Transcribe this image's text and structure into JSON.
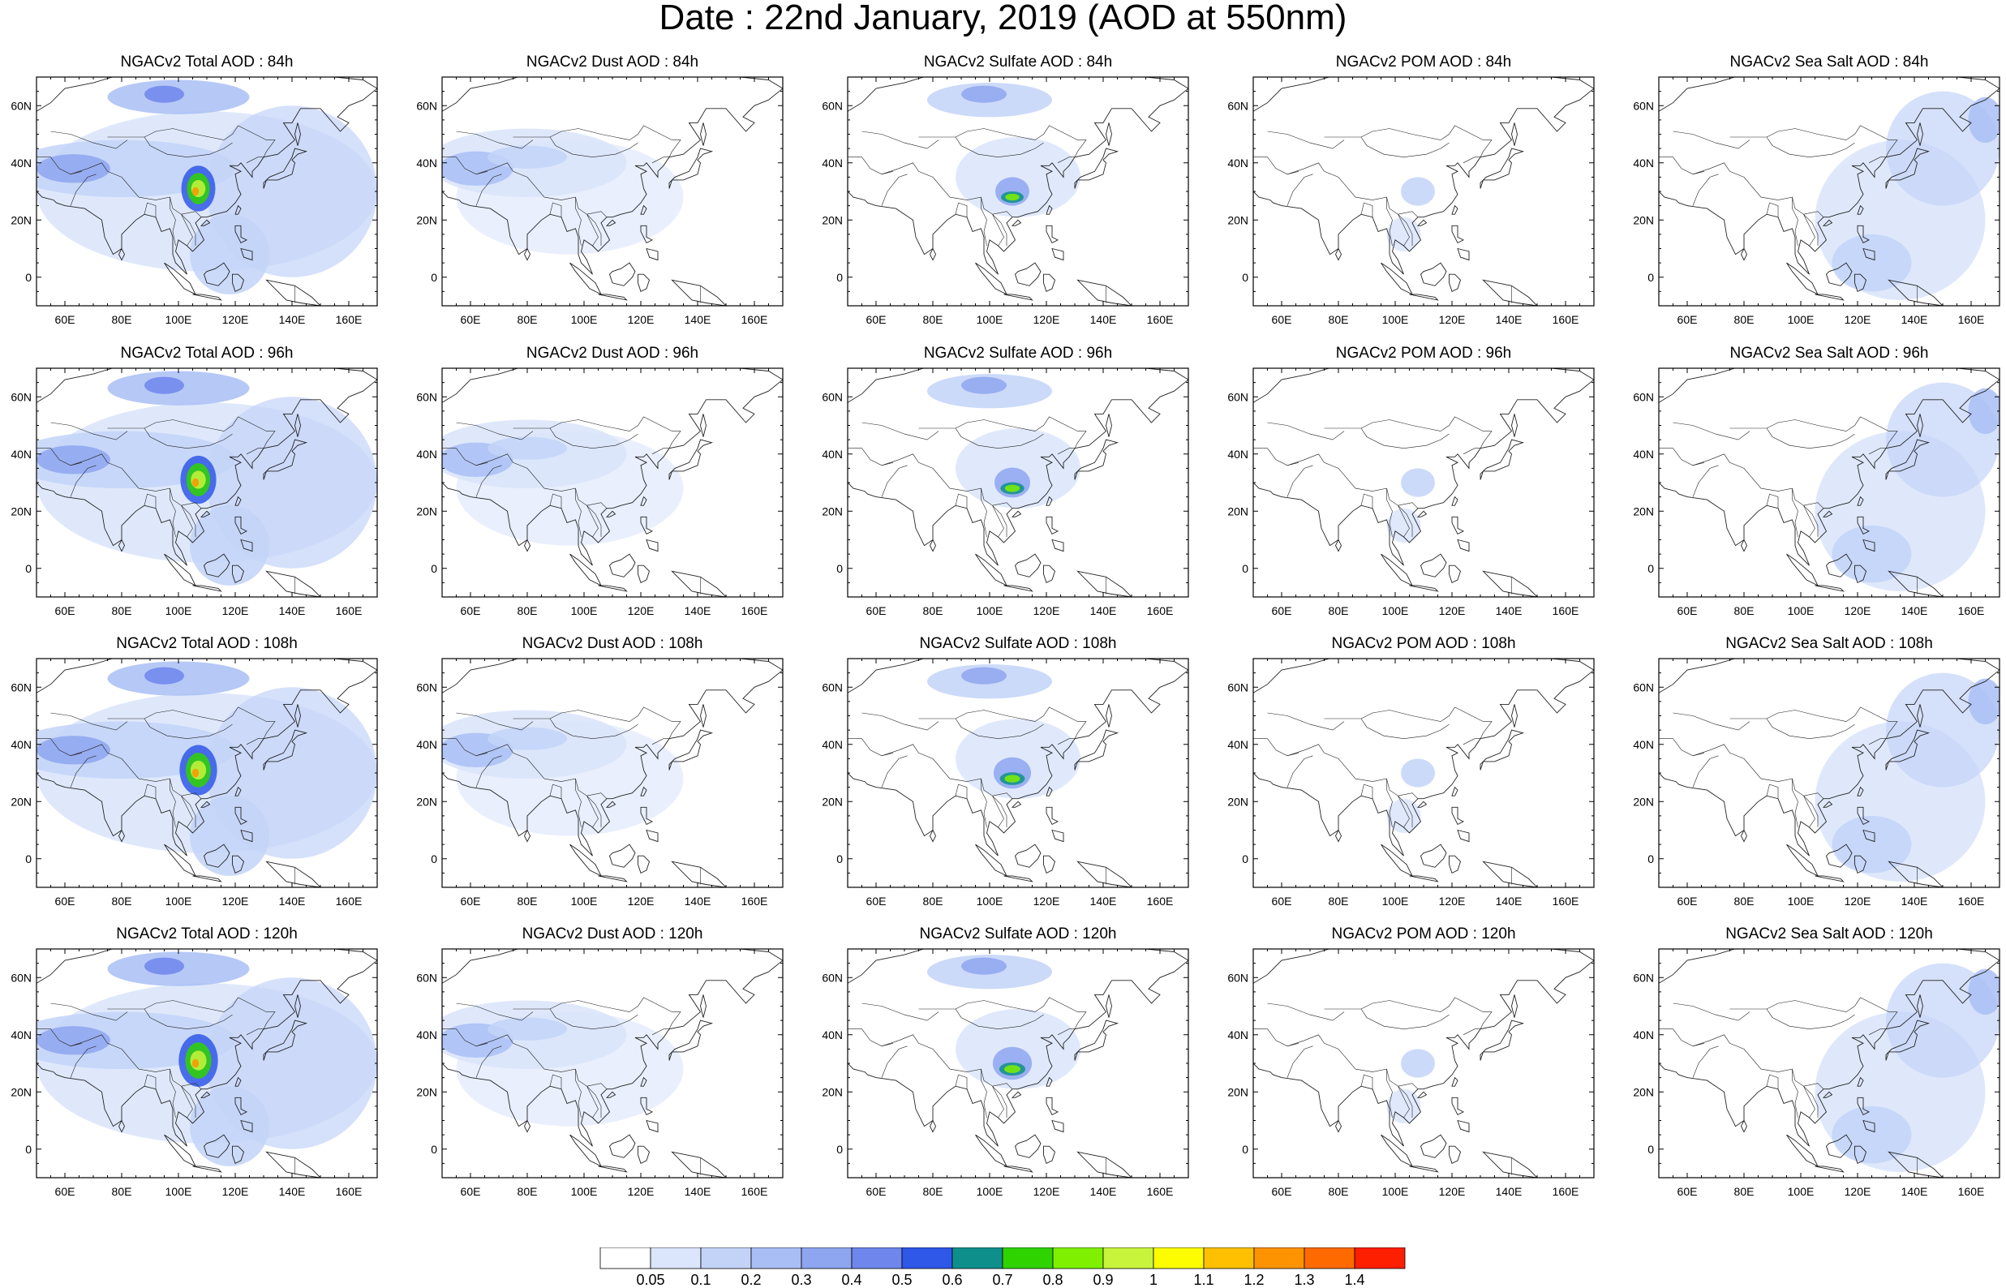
{
  "title": "Date : 22nd January, 2019 (AOD at 550nm)",
  "map": {
    "lon_ticks": [
      "60E",
      "80E",
      "100E",
      "120E",
      "140E",
      "160E"
    ],
    "lat_ticks": [
      "60N",
      "40N",
      "20N",
      "0"
    ],
    "lon_range": [
      50,
      170
    ],
    "lat_range": [
      -10,
      70
    ],
    "coastline": "coastline-icon"
  },
  "columns": [
    "Total",
    "Dust",
    "Sulfate",
    "POM",
    "Sea Salt"
  ],
  "panels": [
    [
      {
        "title": "NGACv2 Total AOD : 84h"
      },
      {
        "title": "NGACv2 Dust AOD : 84h"
      },
      {
        "title": "NGACv2 Sulfate AOD : 84h"
      },
      {
        "title": "NGACv2 POM AOD : 84h"
      },
      {
        "title": "NGACv2 Sea Salt AOD : 84h"
      }
    ],
    [
      {
        "title": "NGACv2 Total AOD : 96h"
      },
      {
        "title": "NGACv2 Dust AOD : 96h"
      },
      {
        "title": "NGACv2 Sulfate AOD : 96h"
      },
      {
        "title": "NGACv2 POM AOD : 96h"
      },
      {
        "title": "NGACv2 Sea Salt AOD : 96h"
      }
    ],
    [
      {
        "title": "NGACv2 Total AOD : 108h"
      },
      {
        "title": "NGACv2 Dust AOD : 108h"
      },
      {
        "title": "NGACv2 Sulfate AOD : 108h"
      },
      {
        "title": "NGACv2 POM AOD : 108h"
      },
      {
        "title": "NGACv2 Sea Salt AOD : 108h"
      }
    ],
    [
      {
        "title": "NGACv2 Total AOD : 120h"
      },
      {
        "title": "NGACv2 Dust AOD : 120h"
      },
      {
        "title": "NGACv2 Sulfate AOD : 120h"
      },
      {
        "title": "NGACv2 POM AOD : 120h"
      },
      {
        "title": "NGACv2 Sea Salt  AOD : 120h"
      }
    ]
  ],
  "colorbar": {
    "labels": [
      "0.05",
      "0.1",
      "0.2",
      "0.3",
      "0.4",
      "0.5",
      "0.6",
      "0.7",
      "0.8",
      "0.9",
      "1",
      "1.1",
      "1.2",
      "1.3",
      "1.4"
    ],
    "colors": [
      "#ffffff",
      "#dbe5fb",
      "#c3d3f8",
      "#a9bef5",
      "#8ea6f0",
      "#6f86ec",
      "#2f57e8",
      "#0f8f8c",
      "#2fd300",
      "#7ef000",
      "#c8f43c",
      "#fdfd00",
      "#fec000",
      "#fe9300",
      "#fe6a00",
      "#fe1e00"
    ]
  }
}
